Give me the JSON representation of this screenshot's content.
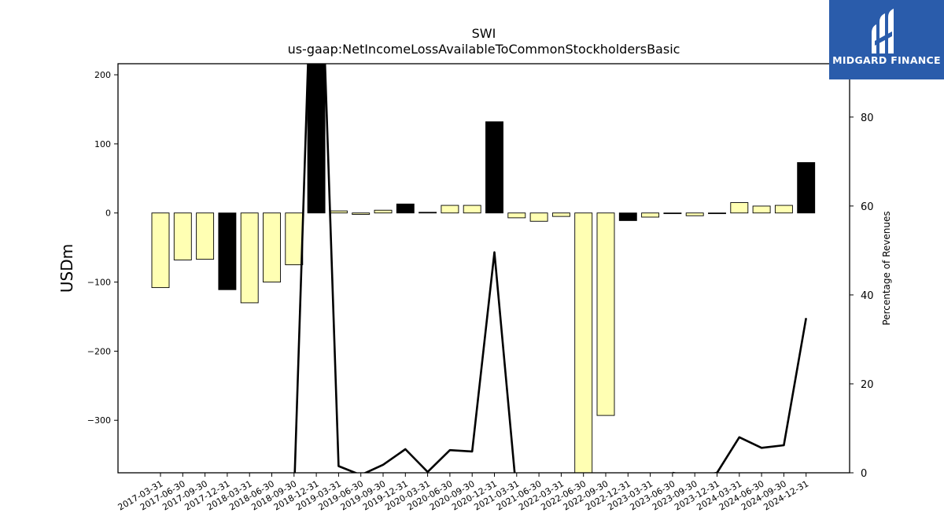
{
  "chart_data": {
    "type": "bar",
    "title": "SWI",
    "subtitle": "us-gaap:NetIncomeLossAvailableToCommonStockholdersBasic",
    "ylabel": "USDm",
    "y2label": "Percentage of Revenues",
    "ylim": [
      -376,
      216
    ],
    "y2lim": [
      0,
      92
    ],
    "yticks": [
      200,
      100,
      0,
      -100,
      -200,
      -300
    ],
    "y2ticks": [
      0,
      20,
      40,
      60,
      80
    ],
    "categories": [
      "2017-03-31",
      "2017-06-30",
      "2017-09-30",
      "2017-12-31",
      "2018-03-31",
      "2018-06-30",
      "2018-09-30",
      "2018-12-31",
      "2019-03-31",
      "2019-06-30",
      "2019-09-30",
      "2019-12-31",
      "2020-03-31",
      "2020-06-30",
      "2020-09-30",
      "2020-12-31",
      "2021-03-31",
      "2021-06-30",
      "2022-03-31",
      "2022-06-30",
      "2022-09-30",
      "2022-12-31",
      "2023-03-31",
      "2023-06-30",
      "2023-09-30",
      "2023-12-31",
      "2024-03-31",
      "2024-06-30",
      "2024-09-30",
      "2024-12-31"
    ],
    "series": [
      {
        "type": "bar",
        "values": [
          -108,
          -68,
          -67,
          -111,
          -130,
          -100,
          -75,
          216,
          3,
          -2,
          4,
          13,
          1,
          11,
          11,
          132,
          -7,
          -12,
          -5,
          -376,
          -293,
          -11,
          -6,
          -1,
          -4,
          -1,
          15,
          10,
          11,
          73
        ],
        "fill_colors": [
          "#ffffb3",
          "#ffffb3",
          "#ffffb3",
          "#000000",
          "#ffffb3",
          "#ffffb3",
          "#ffffb3",
          "#000000",
          "#ffffb3",
          "#ffffb3",
          "#ffffb3",
          "#000000",
          "#000000",
          "#ffffb3",
          "#ffffb3",
          "#000000",
          "#ffffb3",
          "#ffffb3",
          "#ffffb3",
          "#ffffb3",
          "#ffffb3",
          "#000000",
          "#ffffb3",
          "#ffffb3",
          "#ffffb3",
          "#ffffb3",
          "#ffffb3",
          "#ffffb3",
          "#ffffb3",
          "#000000"
        ]
      },
      {
        "type": "line",
        "axis": "secondary",
        "color": "#000000",
        "values": [
          null,
          null,
          null,
          null,
          null,
          null,
          -5,
          150,
          1.5,
          -0.5,
          1.8,
          5.3,
          0.2,
          5.1,
          4.8,
          49.6,
          -5,
          null,
          null,
          null,
          null,
          null,
          null,
          0,
          -1,
          0,
          8,
          5.6,
          6.2,
          34.8
        ]
      }
    ],
    "grid": false,
    "legend": "none"
  },
  "brand": {
    "name": "MIDGARD FINANCE",
    "bg_color": "#2a5cab"
  }
}
